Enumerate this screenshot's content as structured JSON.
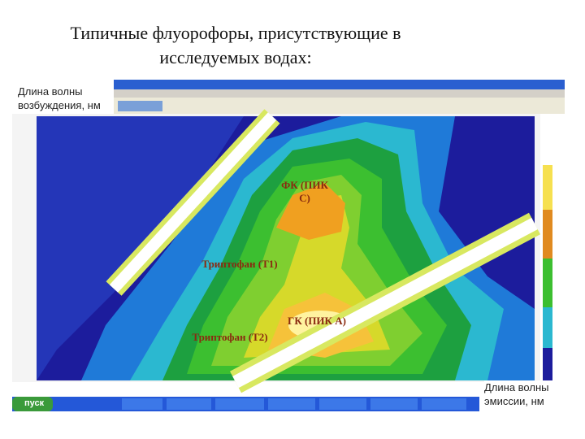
{
  "title_lines": [
    "Типичные флуорофоры, присутствующие в",
    "исследуемых водах:"
  ],
  "y_label": "Длина волны возбуждения, нм",
  "x_label": "Длина волны эмиссии, нм",
  "annotations": [
    "ФК (ПИК С)",
    "Триптофан (Т1)",
    "ГК (ПИК А)",
    "Триптофан (Т2)"
  ],
  "taskbar": {
    "start": "пуск"
  }
}
